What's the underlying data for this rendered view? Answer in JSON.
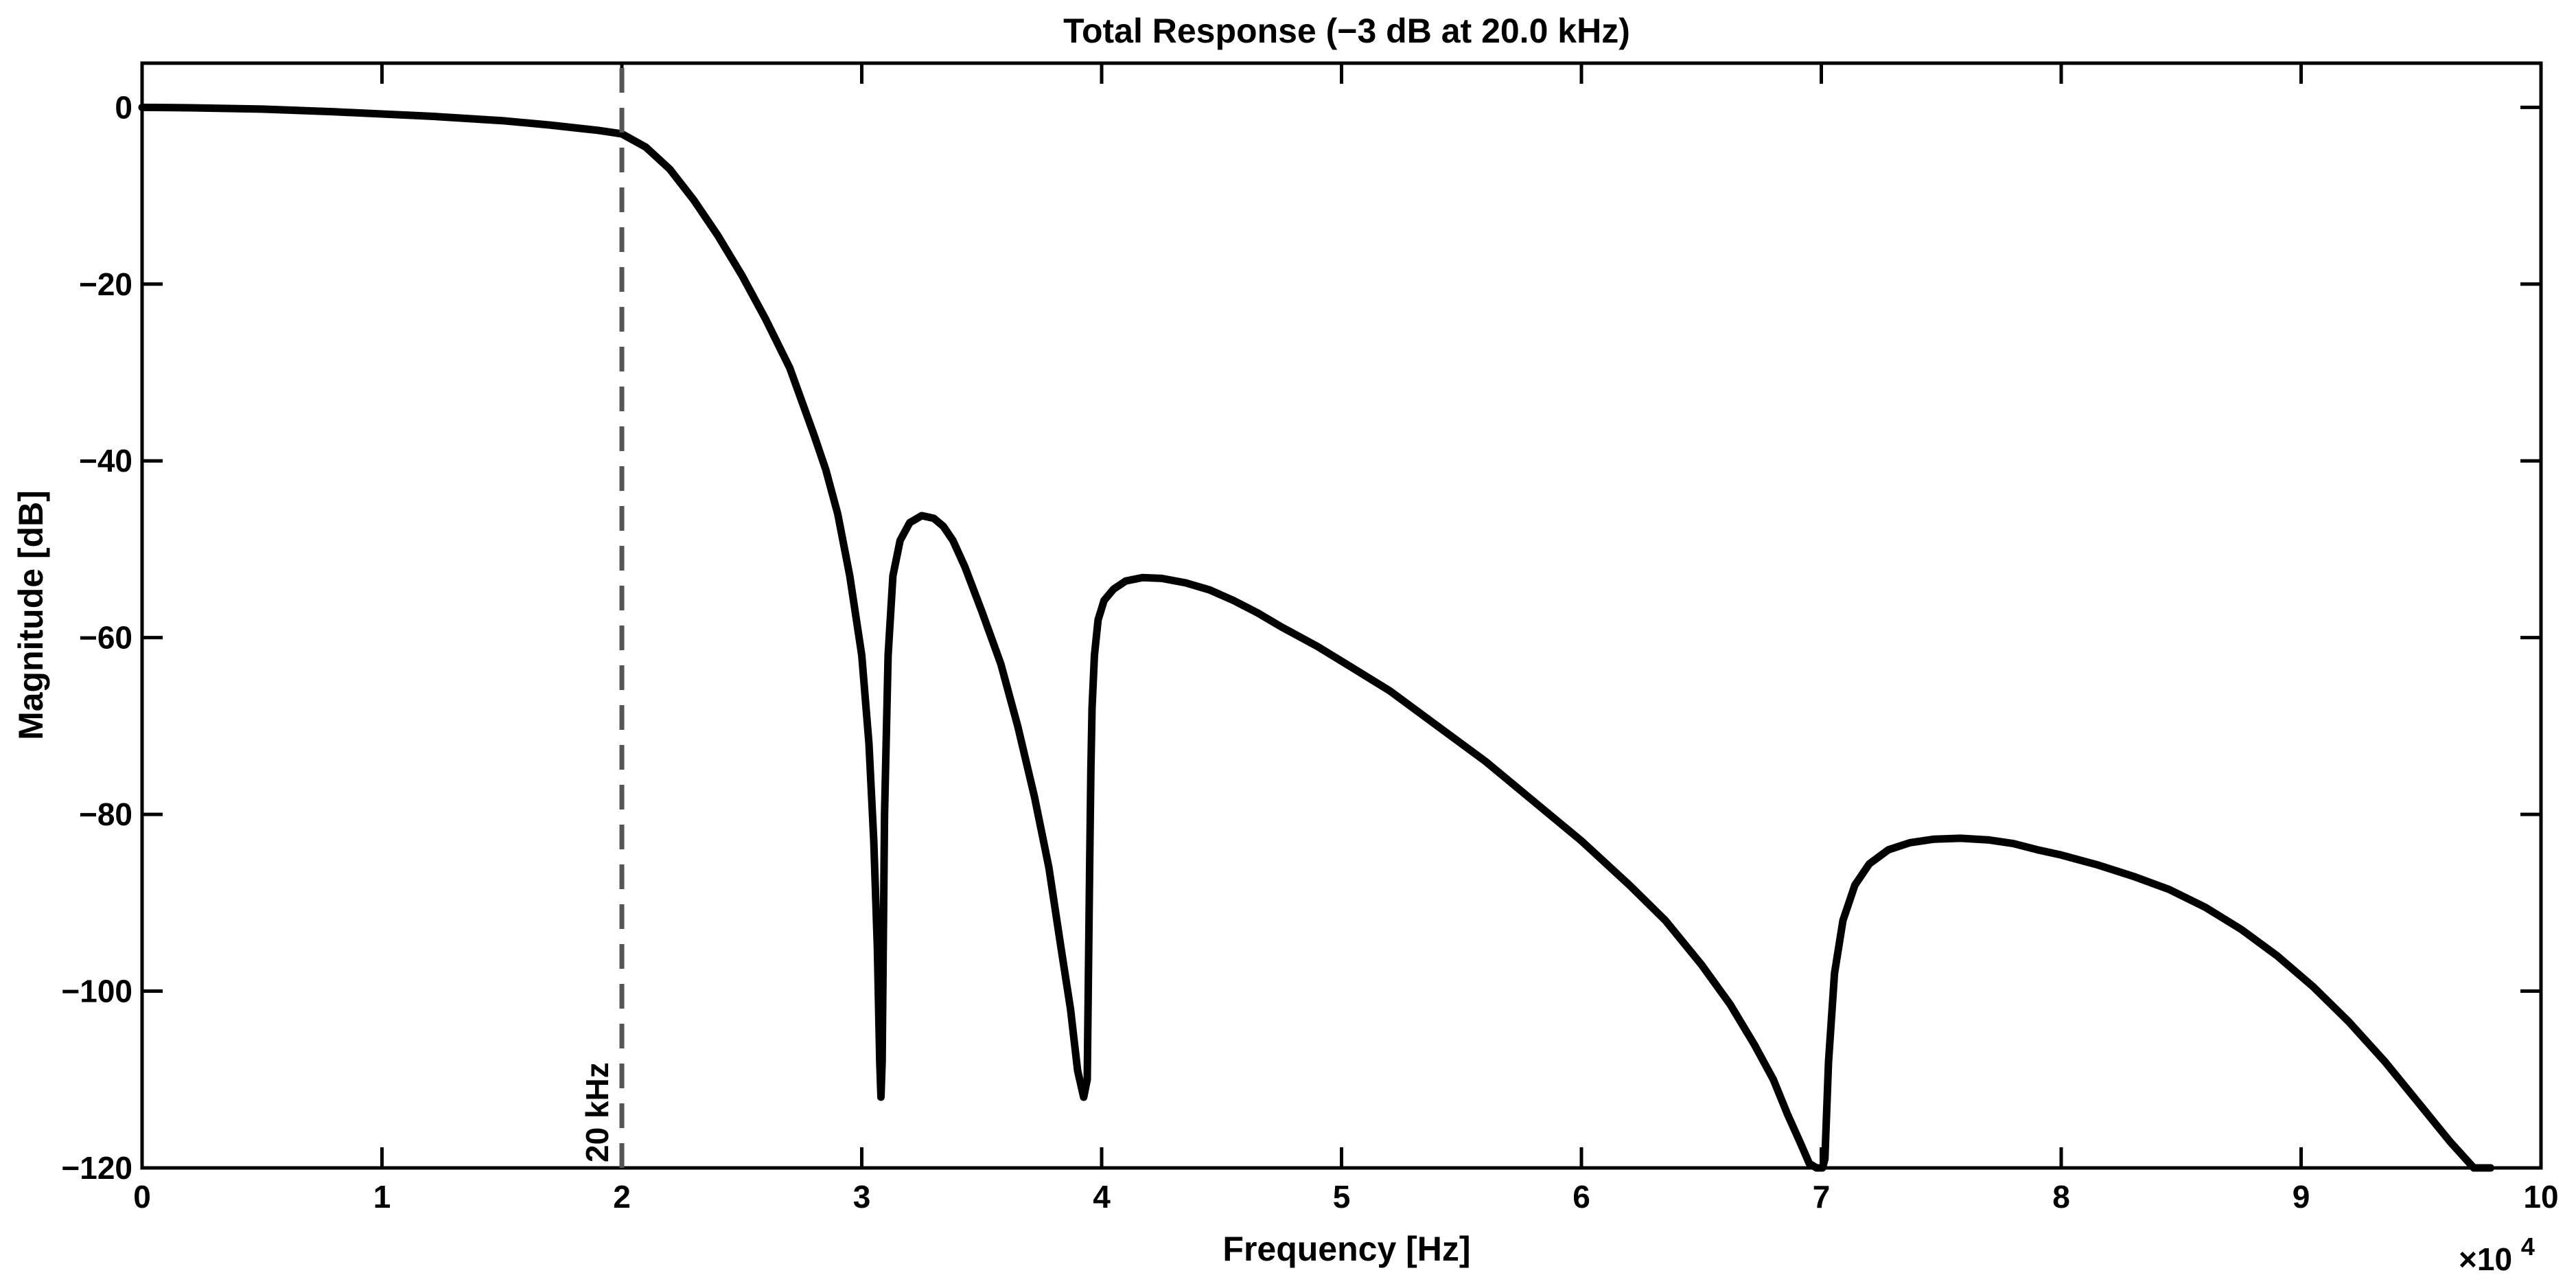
{
  "chart_data": {
    "type": "line",
    "title": "Total Response (−3 dB at 20.0 kHz)",
    "xlabel": "Frequency [Hz]",
    "ylabel": "Magnitude [dB]",
    "x_exponent_label": {
      "mantissa": "×10",
      "exponent": "4"
    },
    "xlim": [
      0,
      100000
    ],
    "ylim": [
      -120,
      5
    ],
    "x_ticks": [
      {
        "value": 0,
        "label": "0"
      },
      {
        "value": 10000,
        "label": "1"
      },
      {
        "value": 20000,
        "label": "2"
      },
      {
        "value": 30000,
        "label": "3"
      },
      {
        "value": 40000,
        "label": "4"
      },
      {
        "value": 50000,
        "label": "5"
      },
      {
        "value": 60000,
        "label": "6"
      },
      {
        "value": 70000,
        "label": "7"
      },
      {
        "value": 80000,
        "label": "8"
      },
      {
        "value": 90000,
        "label": "9"
      },
      {
        "value": 100000,
        "label": "10"
      }
    ],
    "y_ticks": [
      {
        "value": 0,
        "label": "0"
      },
      {
        "value": -20,
        "label": "−20"
      },
      {
        "value": -40,
        "label": "−40"
      },
      {
        "value": -60,
        "label": "−60"
      },
      {
        "value": -80,
        "label": "−80"
      },
      {
        "value": -100,
        "label": "−100"
      },
      {
        "value": -120,
        "label": "−120"
      }
    ],
    "grid": false,
    "series": [
      {
        "color": "#000000",
        "x": [
          0,
          2000,
          5000,
          8000,
          10000,
          12000,
          15000,
          17000,
          18000,
          19000,
          20000,
          21000,
          22000,
          23000,
          24000,
          25000,
          26000,
          27000,
          28000,
          28500,
          29000,
          29500,
          30000,
          30300,
          30500,
          30650,
          30750,
          30800,
          30850,
          30950,
          31100,
          31300,
          31600,
          32000,
          32500,
          33000,
          33400,
          33800,
          34300,
          35000,
          35800,
          36500,
          37200,
          37800,
          38300,
          38700,
          39000,
          39250,
          39400,
          39500,
          39550,
          39600,
          39700,
          39850,
          40100,
          40500,
          41000,
          41700,
          42500,
          43500,
          44500,
          45500,
          46500,
          47500,
          49000,
          50500,
          52000,
          54000,
          56000,
          58000,
          60000,
          62000,
          63500,
          65000,
          66200,
          67200,
          68000,
          68600,
          69100,
          69500,
          69800,
          69950,
          70050,
          70150,
          70300,
          70550,
          70900,
          71400,
          72000,
          72800,
          73700,
          74700,
          75800,
          77000,
          78000,
          79000,
          80000,
          81500,
          83000,
          84500,
          86000,
          87500,
          89000,
          90500,
          92000,
          93500,
          95000,
          96200,
          97200,
          97900
        ],
        "y": [
          0,
          -0.05,
          -0.2,
          -0.5,
          -0.75,
          -1.0,
          -1.5,
          -2.0,
          -2.3,
          -2.6,
          -3,
          -4.5,
          -7,
          -10.5,
          -14.5,
          -19,
          -24,
          -29.5,
          -37,
          -41,
          -46,
          -53,
          -62,
          -72,
          -83,
          -95,
          -108,
          -112,
          -108,
          -80,
          -62,
          -53,
          -49,
          -47,
          -46.2,
          -46.5,
          -47.4,
          -49,
          -52,
          -57,
          -63,
          -70,
          -78,
          -86,
          -95,
          -102,
          -109,
          -112,
          -110,
          -86,
          -75,
          -68,
          -62,
          -58,
          -55.8,
          -54.5,
          -53.6,
          -53.2,
          -53.3,
          -53.8,
          -54.6,
          -55.8,
          -57.2,
          -58.8,
          -61,
          -63.5,
          -66,
          -70,
          -74,
          -78.5,
          -83,
          -88,
          -92,
          -97,
          -101.5,
          -106,
          -110,
          -114,
          -117,
          -119.5,
          -120,
          -120,
          -120,
          -119,
          -108,
          -98,
          -92,
          -88,
          -85.6,
          -84,
          -83.2,
          -82.8,
          -82.7,
          -82.9,
          -83.3,
          -84,
          -84.6,
          -85.7,
          -87,
          -88.5,
          -90.5,
          -93,
          -96,
          -99.5,
          -103.5,
          -108,
          -113,
          -117,
          -120,
          -120
        ]
      },
      {
        "color": "#555555",
        "dashed": true,
        "x": [
          20000,
          20000
        ],
        "y": [
          -120,
          5
        ]
      }
    ],
    "annotations": [
      {
        "text": "20 kHz",
        "x": 20000,
        "y": -120,
        "rotation": -90
      }
    ]
  }
}
